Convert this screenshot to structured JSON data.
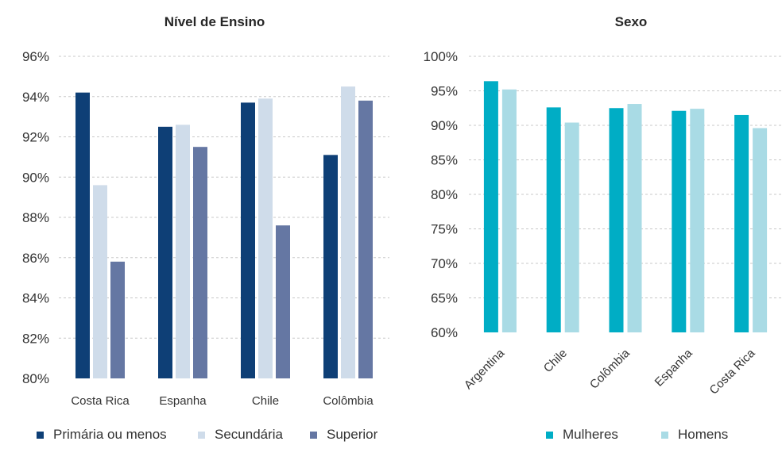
{
  "chart_data": [
    {
      "type": "bar",
      "title": "Nível de Ensino",
      "xlabel": "",
      "ylabel": "",
      "ylim": [
        80,
        96
      ],
      "yticks": [
        "96%",
        "94%",
        "92%",
        "90%",
        "88%",
        "86%",
        "84%",
        "82%",
        "80%"
      ],
      "categories": [
        "Costa Rica",
        "Espanha",
        "Chile",
        "Colômbia"
      ],
      "series": [
        {
          "name": "Primária ou menos",
          "color": "#0e3f76",
          "values": [
            94.2,
            92.5,
            93.7,
            91.1
          ]
        },
        {
          "name": "Secundária",
          "color": "#cfdcea",
          "values": [
            89.6,
            92.6,
            93.9,
            94.5
          ]
        },
        {
          "name": "Superior",
          "color": "#6577a3",
          "values": [
            85.8,
            91.5,
            87.6,
            93.8
          ]
        }
      ],
      "grid": true,
      "legend": "bottom"
    },
    {
      "type": "bar",
      "title": "Sexo",
      "xlabel": "",
      "ylabel": "",
      "ylim": [
        60,
        100
      ],
      "yticks": [
        "100%",
        "95%",
        "90%",
        "85%",
        "80%",
        "75%",
        "70%",
        "65%",
        "60%"
      ],
      "categories": [
        "Argentina",
        "Chile",
        "Colômbia",
        "Espanha",
        "Costa Rica"
      ],
      "series": [
        {
          "name": "Mulheres",
          "color": "#00adc5",
          "values": [
            96.4,
            92.6,
            92.5,
            92.1,
            91.5
          ]
        },
        {
          "name": "Homens",
          "color": "#a9dbe5",
          "values": [
            95.2,
            90.4,
            93.1,
            92.4,
            89.6
          ]
        }
      ],
      "grid": true,
      "legend": "bottom"
    }
  ]
}
